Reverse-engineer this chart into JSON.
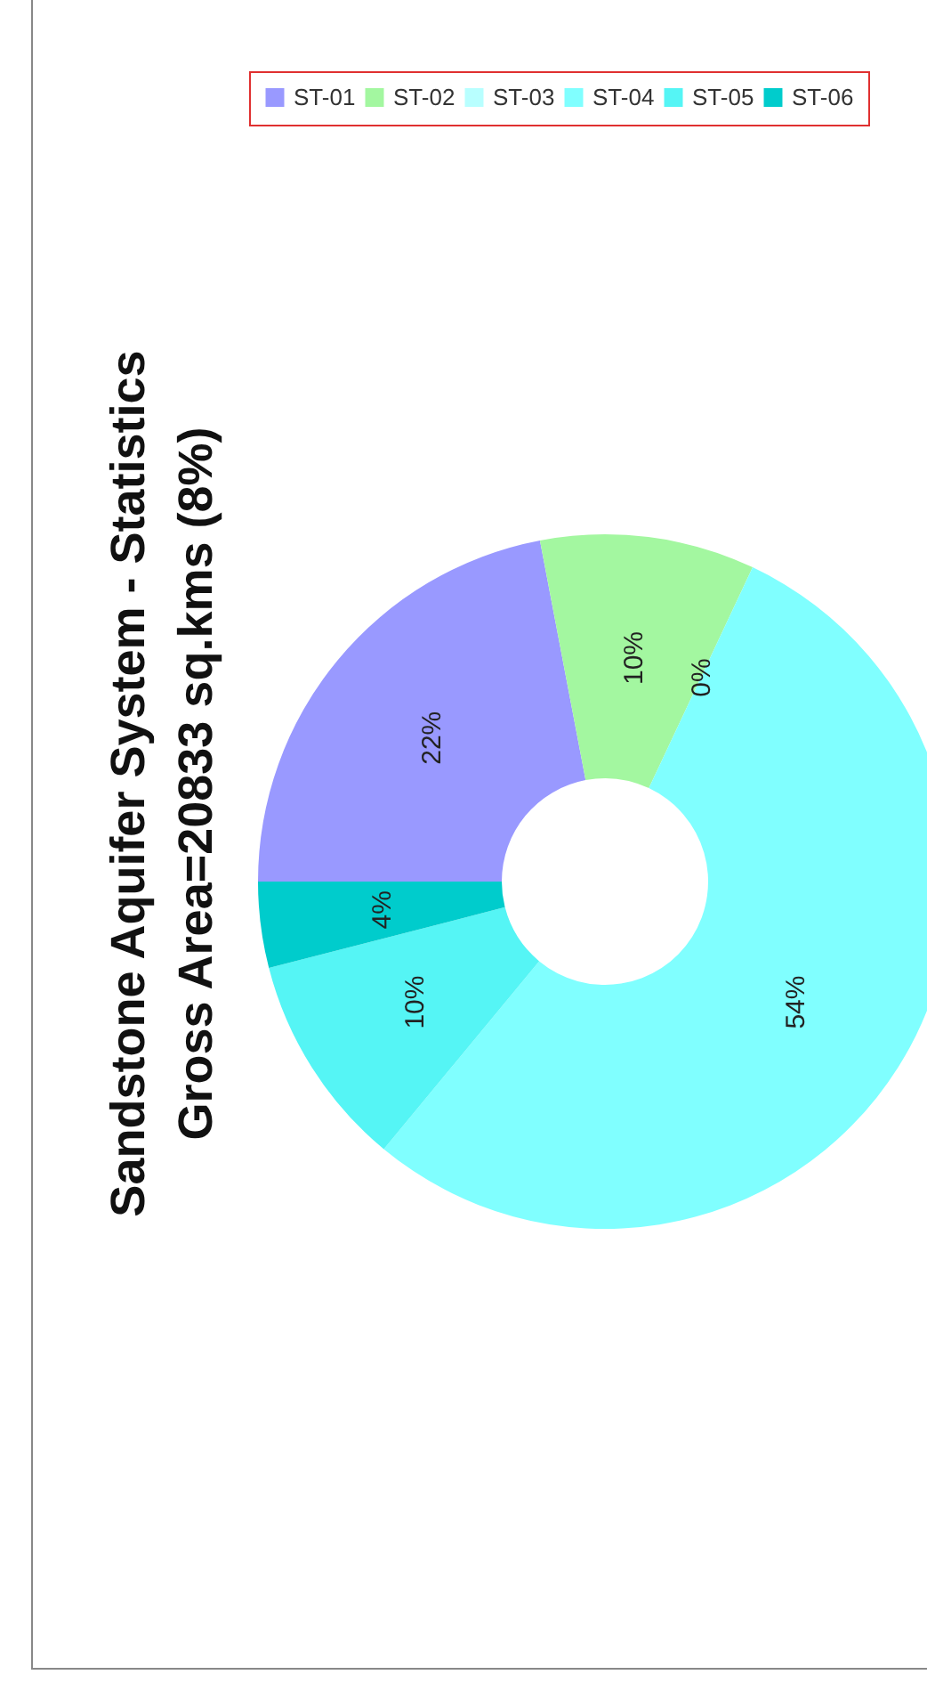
{
  "chart_data": {
    "type": "donut",
    "title": "Sandstone Aquifer System - Statistics",
    "subtitle": "Gross Area=20833  sq.kms (8%)",
    "categories": [
      "ST-01",
      "ST-02",
      "ST-03",
      "ST-04",
      "ST-05",
      "ST-06"
    ],
    "values": [
      22,
      10,
      0,
      54,
      10,
      4
    ],
    "value_labels": [
      "22%",
      "10%",
      "0%",
      "54%",
      "10%",
      "4%"
    ],
    "colors": [
      "#9999ff",
      "#a3f7a0",
      "#b8ffff",
      "#80ffff",
      "#55f5f5",
      "#00cccc"
    ],
    "legend": "top"
  }
}
